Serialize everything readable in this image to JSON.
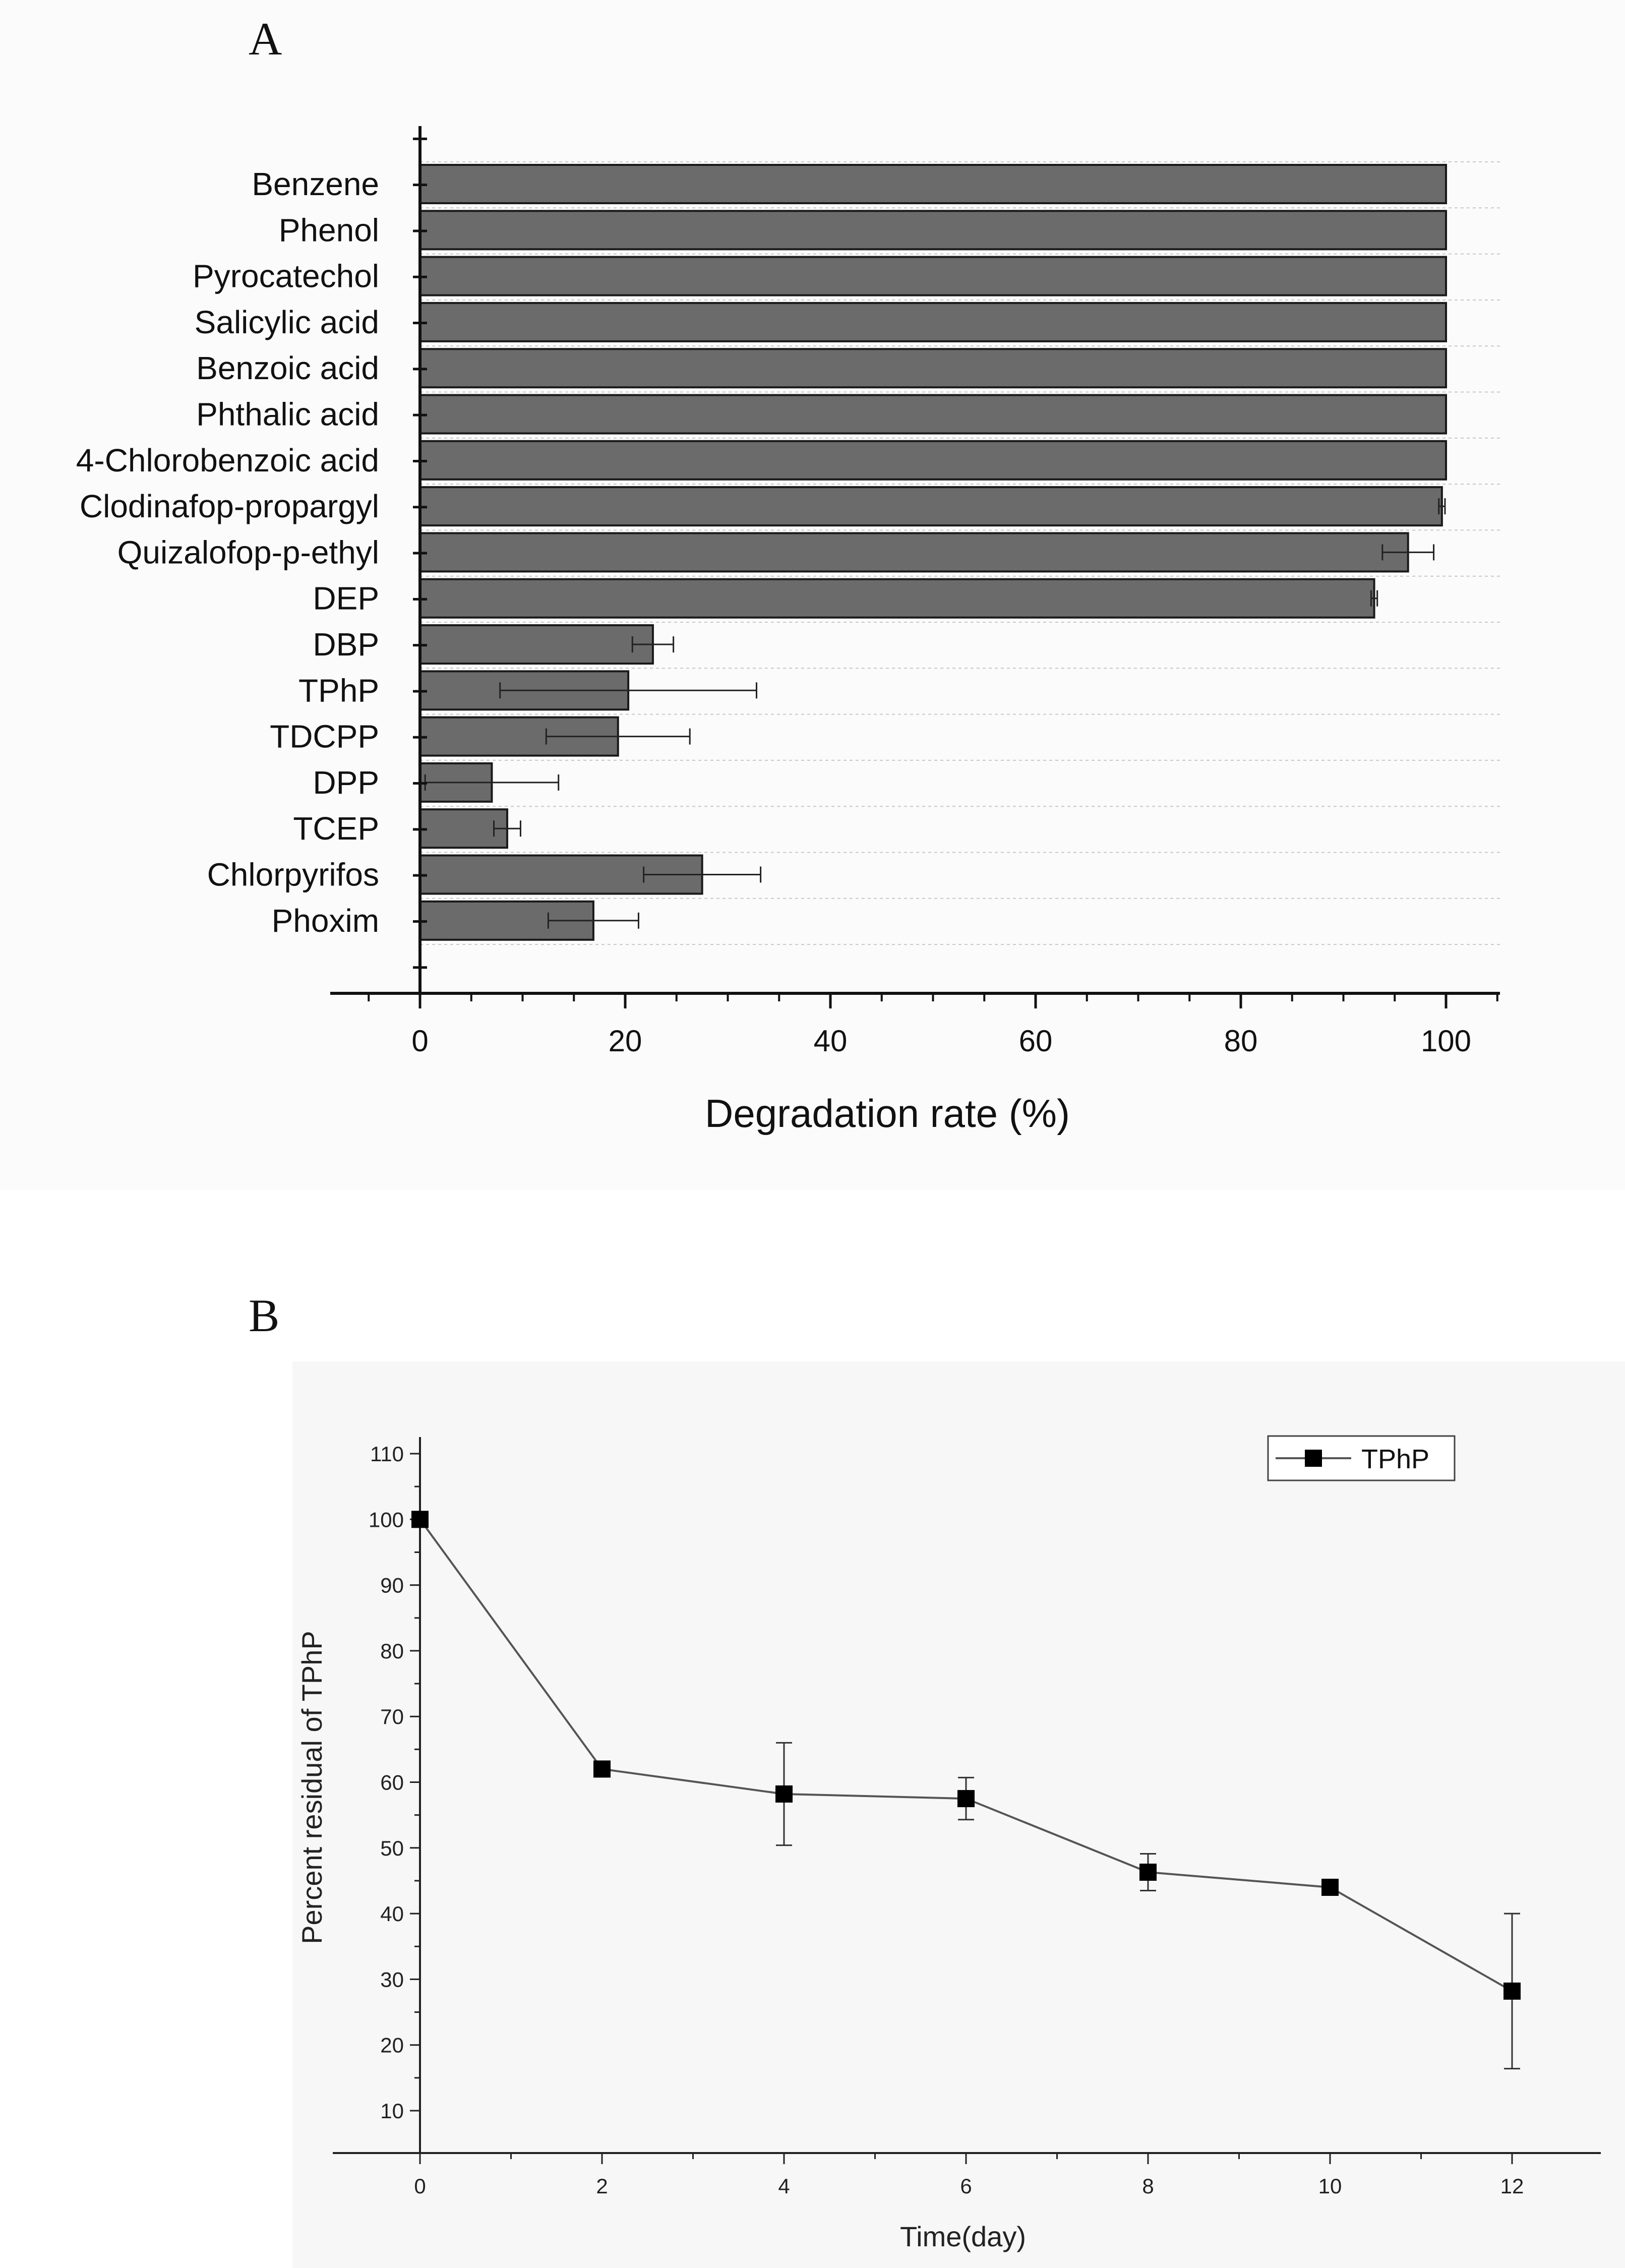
{
  "panels": {
    "a_label": "A",
    "b_label": "B"
  },
  "colors": {
    "bar_fill": "#6b6b6b",
    "bar_stroke": "#1a1a1a",
    "line": "#555555",
    "marker": "#000000",
    "grid": "#c8c8c8"
  },
  "chart_data": [
    {
      "type": "bar",
      "orientation": "horizontal",
      "categories": [
        "Benzene",
        "Phenol",
        "Pyrocatechol",
        "Salicylic acid",
        "Benzoic acid",
        "Phthalic acid",
        "4-Chlorobenzoic acid",
        "Clodinafop-propargyl",
        "Quizalofop-p-ethyl",
        "DEP",
        "DBP",
        "TPhP",
        "TDCPP",
        "DPP",
        "TCEP",
        "Chlorpyrifos",
        "Phoxim"
      ],
      "values": [
        100,
        100,
        100,
        100,
        100,
        100,
        100,
        99.6,
        96.3,
        93,
        22.7,
        20.3,
        19.3,
        7,
        8.5,
        27.5,
        16.9
      ],
      "errors": [
        0,
        0,
        0,
        0,
        0,
        0,
        0,
        0.3,
        2.5,
        0.3,
        2,
        12.5,
        7,
        6.5,
        1.3,
        5.7,
        4.4
      ],
      "xlabel": "Degradation rate (%)",
      "xlim": [
        -8,
        105
      ],
      "xticks": [
        0,
        20,
        40,
        60,
        80,
        100
      ],
      "grid": true
    },
    {
      "type": "line",
      "x": [
        0,
        2,
        4,
        6,
        8,
        10,
        12
      ],
      "series": [
        {
          "name": "TPhP",
          "values": [
            100,
            62,
            58.2,
            57.5,
            46.3,
            44,
            28.2
          ],
          "errors": [
            0,
            0.5,
            7.8,
            3.2,
            2.8,
            0.5,
            11.8
          ]
        }
      ],
      "xlabel": "Time(day)",
      "ylabel": "Percent residual of TPhP",
      "xlim": [
        -1,
        13
      ],
      "ylim": [
        5,
        110
      ],
      "xticks": [
        0,
        2,
        4,
        6,
        8,
        10,
        12
      ],
      "yticks": [
        10,
        20,
        30,
        40,
        50,
        60,
        70,
        80,
        90,
        100,
        110
      ],
      "legend": "top-right"
    }
  ]
}
